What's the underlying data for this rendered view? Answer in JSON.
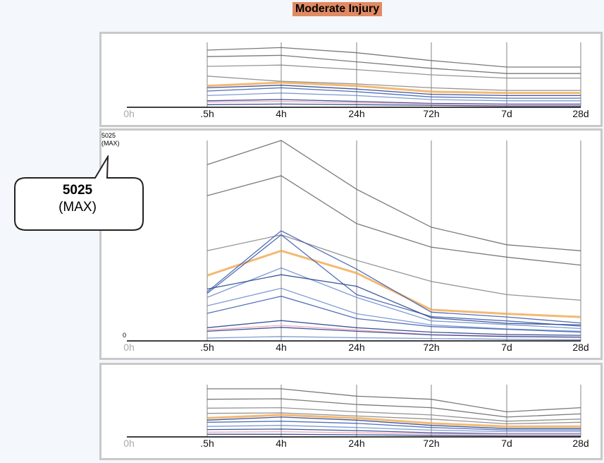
{
  "title": "Moderate Injury",
  "callout": {
    "value": "5025",
    "label": "(MAX)"
  },
  "chart_data": [
    {
      "type": "line",
      "panel": "top",
      "categories": [
        "0h",
        ".5h",
        "4h",
        "24h",
        "72h",
        "7d",
        "28d"
      ],
      "series": [
        {
          "color": "#6b6b6b",
          "values": [
            null,
            0.88,
            0.92,
            0.84,
            0.72,
            0.62,
            0.62
          ]
        },
        {
          "color": "#6b6b6b",
          "values": [
            null,
            0.78,
            0.8,
            0.7,
            0.6,
            0.52,
            0.52
          ]
        },
        {
          "color": "#8a8a8a",
          "values": [
            null,
            0.63,
            0.65,
            0.58,
            0.5,
            0.45,
            0.45
          ]
        },
        {
          "color": "#8a8a8a",
          "values": [
            null,
            0.48,
            0.4,
            0.36,
            0.3,
            0.26,
            0.26
          ]
        },
        {
          "color": "#f0a850",
          "values": [
            null,
            0.33,
            0.38,
            0.33,
            0.24,
            0.22,
            0.22
          ]
        },
        {
          "color": "#2a4590",
          "values": [
            null,
            0.3,
            0.34,
            0.28,
            0.2,
            0.18,
            0.18
          ]
        },
        {
          "color": "#4060b0",
          "values": [
            null,
            0.25,
            0.3,
            0.24,
            0.16,
            0.14,
            0.14
          ]
        },
        {
          "color": "#7090d0",
          "values": [
            null,
            0.18,
            0.22,
            0.18,
            0.12,
            0.1,
            0.1
          ]
        },
        {
          "color": "#2a4590",
          "values": [
            null,
            0.1,
            0.12,
            0.09,
            0.06,
            0.05,
            0.05
          ]
        },
        {
          "color": "#f0a0b0",
          "values": [
            null,
            0.08,
            0.09,
            0.07,
            0.05,
            0.04,
            0.04
          ]
        },
        {
          "color": "#2a4590",
          "values": [
            null,
            0.04,
            0.05,
            0.04,
            0.03,
            0.02,
            0.02
          ]
        }
      ]
    },
    {
      "type": "line",
      "panel": "middle",
      "categories": [
        "0h",
        ".5h",
        "4h",
        "24h",
        "72h",
        "7d",
        "28d"
      ],
      "y_max_label": "5025",
      "y_max_sublabel": "(MAX)",
      "y_min_label": "0",
      "ylim": [
        0,
        5025
      ],
      "series": [
        {
          "color": "#6b6b6b",
          "values": [
            null,
            4420,
            5025,
            3800,
            2850,
            2410,
            2260
          ]
        },
        {
          "color": "#6b6b6b",
          "values": [
            null,
            3640,
            4140,
            2940,
            2350,
            2100,
            1900
          ]
        },
        {
          "color": "#8a8a8a",
          "values": [
            null,
            2260,
            2660,
            2020,
            1490,
            1160,
            1020
          ]
        },
        {
          "color": "#f0a850",
          "values": [
            null,
            1640,
            2260,
            1700,
            780,
            680,
            600
          ]
        },
        {
          "color": "#4060b0",
          "values": [
            null,
            1230,
            2760,
            1800,
            720,
            600,
            450
          ]
        },
        {
          "color": "#4060b0",
          "values": [
            null,
            1190,
            2660,
            1160,
            610,
            500,
            370
          ]
        },
        {
          "color": "#7090d0",
          "values": [
            null,
            1090,
            1830,
            1090,
            500,
            410,
            310
          ]
        },
        {
          "color": "#2a4590",
          "values": [
            null,
            1300,
            1660,
            1370,
            580,
            440,
            400
          ]
        },
        {
          "color": "#7090d0",
          "values": [
            null,
            880,
            1320,
            680,
            400,
            300,
            240
          ]
        },
        {
          "color": "#4060b0",
          "values": [
            null,
            690,
            1120,
            560,
            360,
            290,
            220
          ]
        },
        {
          "color": "#2a4590",
          "values": [
            null,
            330,
            510,
            330,
            220,
            160,
            140
          ]
        },
        {
          "color": "#f0a0b0",
          "values": [
            null,
            270,
            390,
            270,
            160,
            120,
            100
          ]
        },
        {
          "color": "#2a4590",
          "values": [
            null,
            240,
            340,
            240,
            150,
            110,
            90
          ]
        },
        {
          "color": "#7090d0",
          "values": [
            null,
            70,
            110,
            80,
            60,
            40,
            30
          ]
        }
      ]
    },
    {
      "type": "line",
      "panel": "bottom",
      "categories": [
        "0h",
        ".5h",
        "4h",
        "24h",
        "72h",
        "7d",
        "28d"
      ],
      "series": [
        {
          "color": "#6b6b6b",
          "values": [
            null,
            0.92,
            0.92,
            0.78,
            0.72,
            0.48,
            0.56
          ]
        },
        {
          "color": "#6b6b6b",
          "values": [
            null,
            0.72,
            0.73,
            0.62,
            0.56,
            0.38,
            0.44
          ]
        },
        {
          "color": "#8a8a8a",
          "values": [
            null,
            0.55,
            0.56,
            0.48,
            0.42,
            0.3,
            0.34
          ]
        },
        {
          "color": "#8a8a8a",
          "values": [
            null,
            0.45,
            0.46,
            0.4,
            0.34,
            0.25,
            0.28
          ]
        },
        {
          "color": "#f0a850",
          "values": [
            null,
            0.36,
            0.42,
            0.36,
            0.26,
            0.2,
            0.2
          ]
        },
        {
          "color": "#2a4590",
          "values": [
            null,
            0.32,
            0.38,
            0.32,
            0.22,
            0.16,
            0.16
          ]
        },
        {
          "color": "#4060b0",
          "values": [
            null,
            0.28,
            0.3,
            0.26,
            0.18,
            0.13,
            0.13
          ]
        },
        {
          "color": "#7090d0",
          "values": [
            null,
            0.2,
            0.22,
            0.18,
            0.13,
            0.1,
            0.1
          ]
        },
        {
          "color": "#2a4590",
          "values": [
            null,
            0.14,
            0.15,
            0.12,
            0.08,
            0.06,
            0.06
          ]
        },
        {
          "color": "#f0a0b0",
          "values": [
            null,
            0.09,
            0.1,
            0.08,
            0.06,
            0.05,
            0.05
          ]
        },
        {
          "color": "#2a4590",
          "values": [
            null,
            0.05,
            0.05,
            0.04,
            0.03,
            0.02,
            0.02
          ]
        }
      ]
    }
  ]
}
